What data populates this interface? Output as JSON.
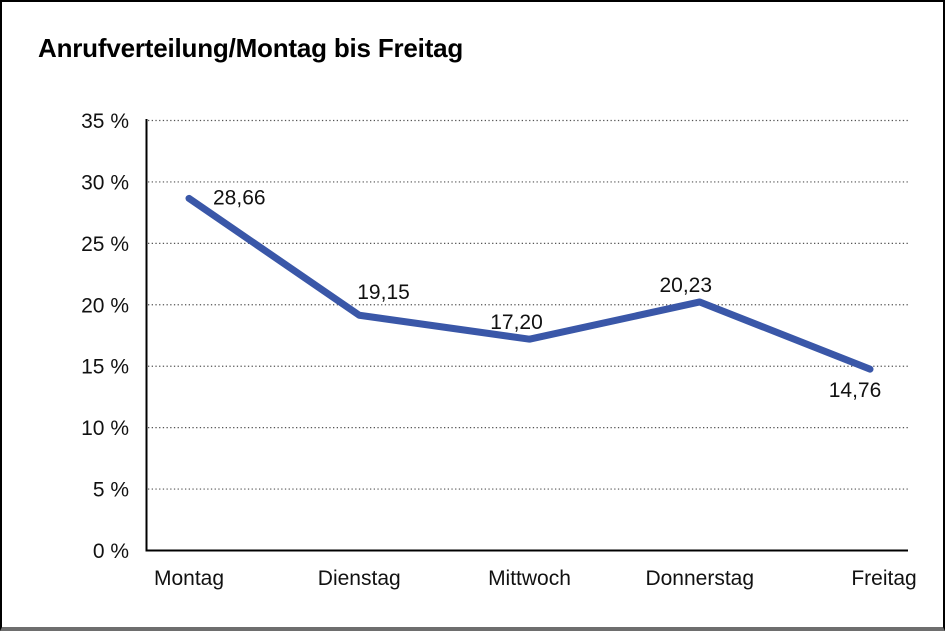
{
  "chart_data": {
    "type": "line",
    "title": "Anrufverteilung/Montag bis Freitag",
    "categories": [
      "Montag",
      "Dienstag",
      "Mittwoch",
      "Donnerstag",
      "Freitag"
    ],
    "values": [
      28.66,
      19.15,
      17.2,
      20.23,
      14.76
    ],
    "value_labels": [
      "28,66",
      "19,15",
      "17,20",
      "20,23",
      "14,76"
    ],
    "xlabel": "",
    "ylabel": "",
    "ylim": [
      0,
      35
    ],
    "ytick_step": 5,
    "ytick_labels": [
      "0 %",
      "5 %",
      "10 %",
      "15 %",
      "20 %",
      "25 %",
      "30 %",
      "35 %"
    ],
    "grid": "horizontal-dotted",
    "legend_position": "none",
    "line_color": "#3A57A8",
    "grid_color": "#555555",
    "axis_color": "#000000",
    "text_color": "#111111"
  }
}
